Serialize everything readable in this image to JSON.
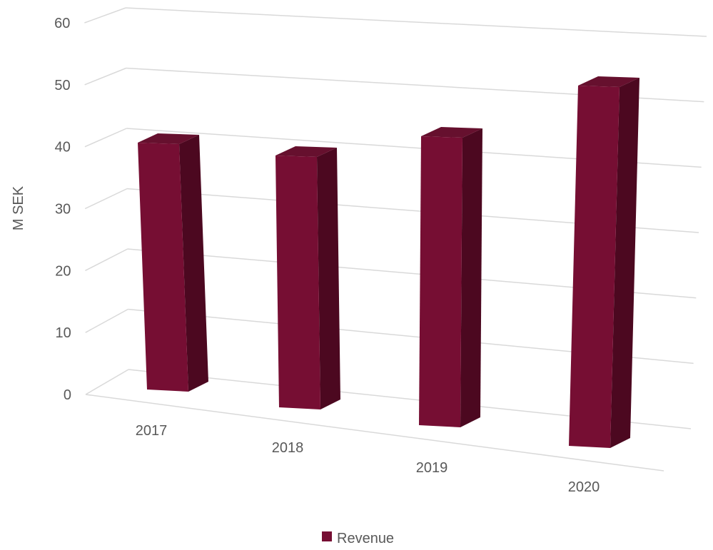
{
  "chart_data": {
    "type": "bar",
    "style": "3d-column",
    "categories": [
      "2017",
      "2018",
      "2019",
      "2020"
    ],
    "series": [
      {
        "name": "Revenue",
        "values": [
          40,
          40,
          45,
          56
        ]
      }
    ],
    "ylabel": "M SEK",
    "ylim": [
      0,
      60
    ],
    "yticks": [
      "0",
      "10",
      "20",
      "30",
      "40",
      "50",
      "60"
    ],
    "grid": true,
    "legend": "bottom",
    "colors": {
      "bar_front": "#760E33",
      "bar_top": "#66102E",
      "bar_side": "#4C0820",
      "grid": "#D9D9D9",
      "text": "#595959"
    }
  }
}
